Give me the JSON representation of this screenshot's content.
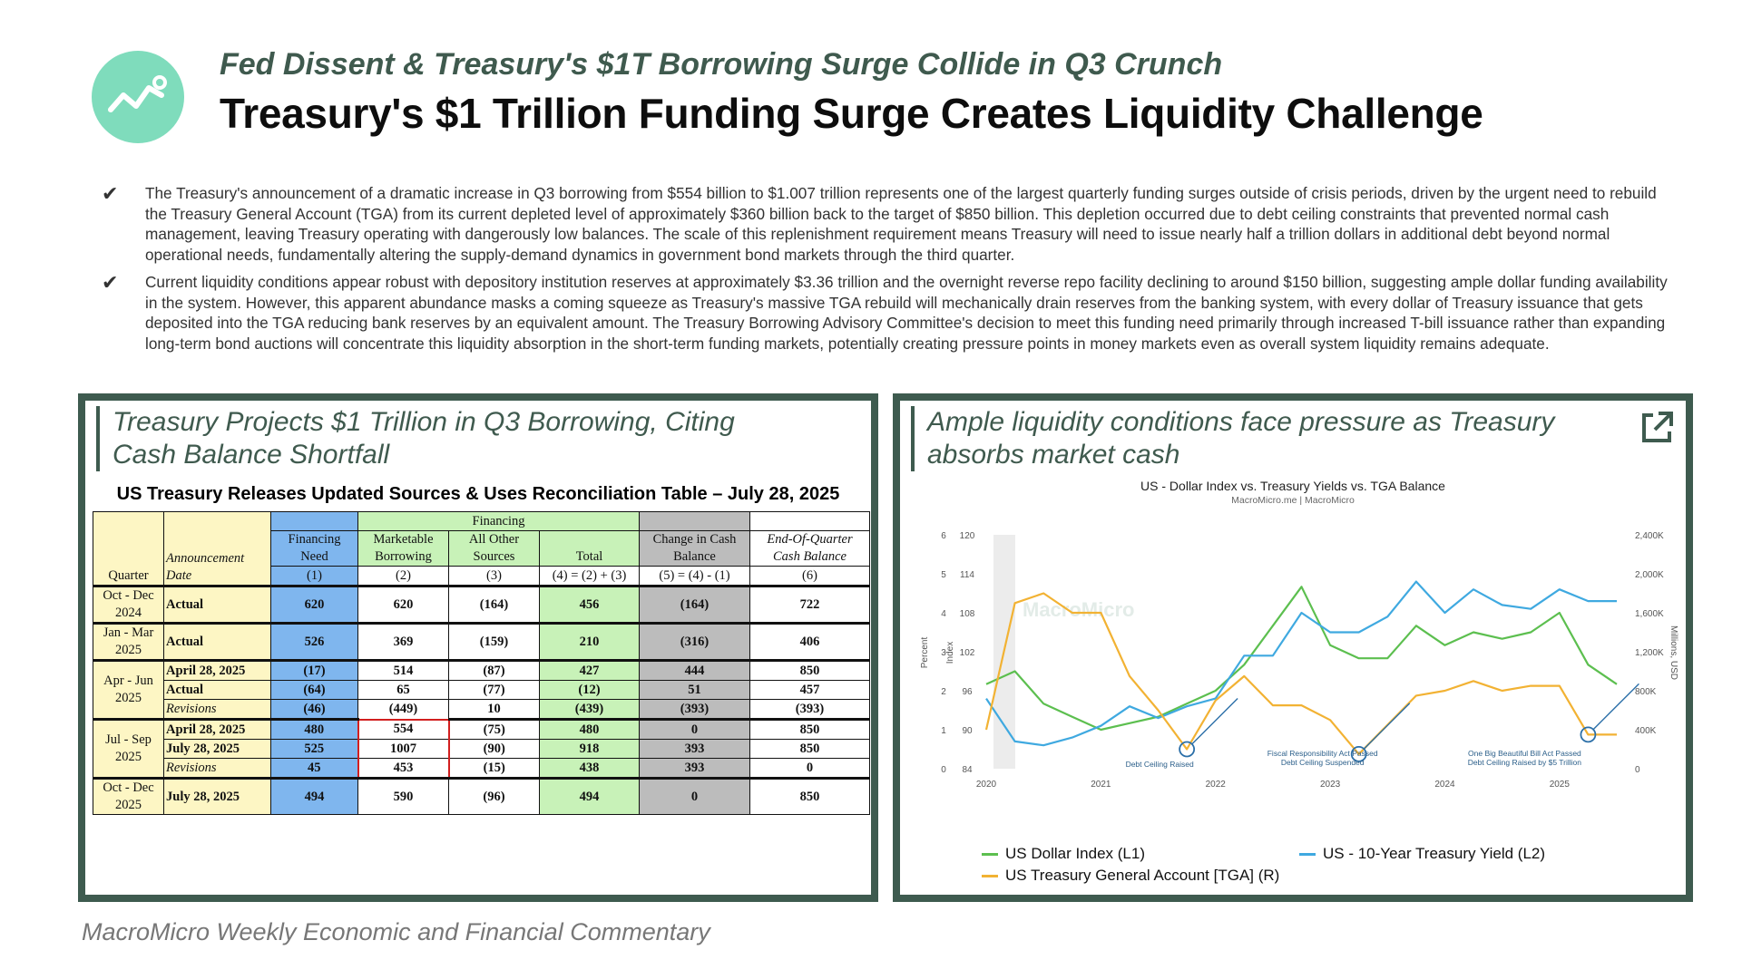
{
  "header": {
    "subtitle": "Fed Dissent & Treasury's $1T Borrowing Surge Collide in Q3 Crunch",
    "title": "Treasury's $1 Trillion Funding Surge Creates Liquidity Challenge",
    "logo_icon": "line-chart-icon"
  },
  "bullets": [
    {
      "icon": "checkmark-icon",
      "text": "The Treasury's announcement of a dramatic increase in Q3 borrowing from $554 billion to $1.007 trillion represents one of the largest quarterly funding surges outside of crisis periods, driven by the urgent need to rebuild the Treasury General Account (TGA) from its current depleted level of approximately $360 billion back to the target of $850 billion. This depletion occurred due to debt ceiling constraints that prevented normal cash management, leaving Treasury operating with dangerously low balances. The scale of this replenishment requirement means Treasury will need to issue nearly half a trillion dollars in additional debt beyond normal operational needs, fundamentally altering the supply-demand dynamics in government bond markets through the third quarter."
    },
    {
      "icon": "checkmark-icon",
      "text": "Current liquidity conditions appear robust with depository institution reserves at approximately $3.36 trillion and the overnight reverse repo facility declining to around $150 billion, suggesting ample dollar funding availability in the system. However, this apparent abundance masks a coming squeeze as Treasury's massive TGA rebuild will mechanically drain reserves from the banking system, with every dollar of Treasury issuance that gets deposited into the TGA reducing bank reserves by an equivalent amount. The Treasury Borrowing Advisory Committee's decision to meet this funding need primarily through increased T-bill issuance rather than expanding long-term bond auctions will concentrate this liquidity absorption in the short-term funding markets, potentially creating pressure points in money markets even as overall system liquidity remains adequate."
    }
  ],
  "left_panel": {
    "title": "Treasury Projects $1 Trillion in Q3 Borrowing, Citing Cash Balance Shortfall",
    "table_title": "US Treasury Releases Updated Sources & Uses Reconciliation Table – July 28, 2025",
    "headers": {
      "financing_group": "Financing",
      "quarter": "Quarter",
      "announcement": "Announcement Date",
      "financing_need": "Financing Need",
      "marketable": "Marketable Borrowing",
      "other": "All Other Sources",
      "total": "Total",
      "change_cash": "Change in Cash Balance",
      "eoq_cash": "End-Of-Quarter Cash Balance",
      "n1": "(1)",
      "n2": "(2)",
      "n3": "(3)",
      "n4": "(4) = (2) + (3)",
      "n5": "(5) = (4) - (1)",
      "n6": "(6)"
    },
    "rows": [
      {
        "q1": "Oct - Dec",
        "q2": "2024",
        "date": "Actual",
        "need": "620",
        "mkt": "620",
        "other": "(164)",
        "total": "456",
        "chg": "(164)",
        "eoq": "722"
      },
      {
        "q1": "Jan - Mar",
        "q2": "2025",
        "date": "Actual",
        "need": "526",
        "mkt": "369",
        "other": "(159)",
        "total": "210",
        "chg": "(316)",
        "eoq": "406"
      },
      {
        "q1": "Apr - Jun",
        "q2": "2025",
        "d1": "April 28, 2025",
        "need1": "(17)",
        "mkt1": "514",
        "other1": "(87)",
        "total1": "427",
        "chg1": "444",
        "eoq1": "850",
        "d2": "Actual",
        "need2": "(64)",
        "mkt2": "65",
        "other2": "(77)",
        "total2": "(12)",
        "chg2": "51",
        "eoq2": "457",
        "d3": "Revisions",
        "need3": "(46)",
        "mkt3": "(449)",
        "other3": "10",
        "total3": "(439)",
        "chg3": "(393)",
        "eoq3": "(393)"
      },
      {
        "q1": "Jul - Sep",
        "q2": "2025",
        "d1": "April 28, 2025",
        "need1": "480",
        "mkt1": "554",
        "other1": "(75)",
        "total1": "480",
        "chg1": "0",
        "eoq1": "850",
        "d2": "July 28, 2025",
        "need2": "525",
        "mkt2": "1007",
        "other2": "(90)",
        "total2": "918",
        "chg2": "393",
        "eoq2": "850",
        "d3": "Revisions",
        "need3": "45",
        "mkt3": "453",
        "other3": "(15)",
        "total3": "438",
        "chg3": "393",
        "eoq3": "0"
      },
      {
        "q1": "Oct - Dec",
        "q2": "2025",
        "date": "July 28, 2025",
        "need": "494",
        "mkt": "590",
        "other": "(96)",
        "total": "494",
        "chg": "0",
        "eoq": "850"
      }
    ]
  },
  "right_panel": {
    "title": "Ample liquidity conditions face pressure as Treasury absorbs market cash",
    "external_link_icon": "external-link-icon",
    "chart_title": "US - Dollar Index vs. Treasury Yields vs. TGA Balance",
    "chart_source": "MacroMicro.me | MacroMicro",
    "watermark": "MacroMicro",
    "axis_labels": {
      "percent": "Percent",
      "index": "Index",
      "right": "Millions, USD"
    },
    "annotations": [
      "Debt Ceiling Raised",
      "Fiscal Responsibility Act Passed",
      "Debt Ceiling Suspended",
      "One Big Beautiful Bill Act Passed",
      "Debt Ceiling Raised by $5 Trillion"
    ],
    "legend": {
      "dxy": "US Dollar Index (L1)",
      "yield": "US - 10-Year Treasury Yield (L2)",
      "tga": "US Treasury General Account [TGA] (R)"
    }
  },
  "chart_data": {
    "type": "line",
    "title": "US - Dollar Index vs. Treasury Yields vs. TGA Balance",
    "x": [
      "2020-01",
      "2020-04",
      "2020-07",
      "2020-10",
      "2021-01",
      "2021-04",
      "2021-07",
      "2021-10",
      "2022-01",
      "2022-04",
      "2022-07",
      "2022-10",
      "2023-01",
      "2023-04",
      "2023-07",
      "2023-10",
      "2024-01",
      "2024-04",
      "2024-07",
      "2024-10",
      "2025-01",
      "2025-04",
      "2025-07"
    ],
    "x_ticks": [
      "2020",
      "2021",
      "2022",
      "2023",
      "2024",
      "2025"
    ],
    "y_percent_ticks": [
      "0",
      "1",
      "2",
      "3",
      "4",
      "5",
      "6"
    ],
    "y_index_ticks": [
      "84",
      "90",
      "96",
      "102",
      "108",
      "114",
      "120"
    ],
    "y_right_ticks": [
      "0",
      "400K",
      "800K",
      "1,200K",
      "1,600K",
      "2,000K",
      "2,400K"
    ],
    "series": [
      {
        "name": "US Dollar Index (L1)",
        "axis": "index",
        "color": "#5cbf4f",
        "values": [
          97,
          99,
          94,
          92,
          90,
          91,
          92,
          94,
          96,
          100,
          106,
          112,
          103,
          101,
          101,
          106,
          103,
          105,
          104,
          105,
          108,
          100,
          97
        ]
      },
      {
        "name": "US - 10-Year Treasury Yield (L2)",
        "axis": "percent",
        "color": "#3fa9e0",
        "values": [
          1.8,
          0.7,
          0.6,
          0.8,
          1.1,
          1.6,
          1.3,
          1.6,
          1.8,
          2.9,
          2.9,
          4.0,
          3.5,
          3.5,
          3.9,
          4.8,
          4.0,
          4.6,
          4.2,
          4.1,
          4.6,
          4.3,
          4.3
        ]
      },
      {
        "name": "US Treasury General Account [TGA] (R)",
        "axis": "right",
        "color": "#f2b233",
        "values": [
          400,
          1700,
          1800,
          1600,
          1600,
          950,
          600,
          200,
          700,
          950,
          650,
          650,
          500,
          150,
          450,
          750,
          800,
          900,
          800,
          850,
          850,
          350,
          350
        ]
      }
    ],
    "ylim_percent": [
      0,
      6
    ],
    "ylim_index": [
      84,
      120
    ],
    "ylim_right": [
      0,
      2400
    ],
    "legend_position": "bottom"
  }
}
